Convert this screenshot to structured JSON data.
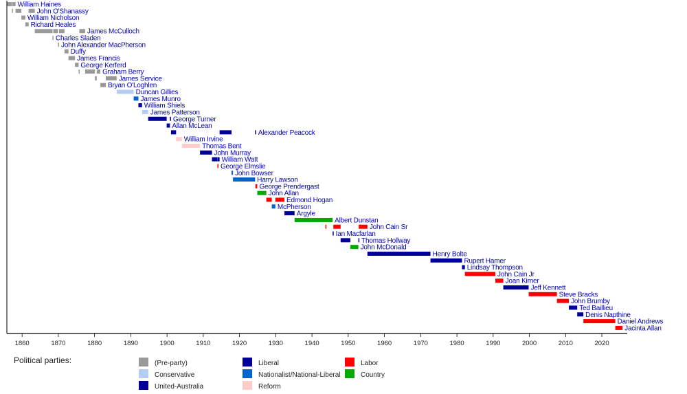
{
  "chart_data": {
    "type": "timeline",
    "title": "",
    "xlim": [
      1855.8,
      2027
    ],
    "xticks": [
      1860,
      1870,
      1880,
      1890,
      1900,
      1910,
      1920,
      1930,
      1940,
      1950,
      1960,
      1970,
      1980,
      1990,
      2000,
      2010,
      2020
    ],
    "legend_title": "Political parties:",
    "legend_placement": "bottom-left",
    "parties": [
      {
        "key": "pre",
        "name": "(Pre-party)",
        "color": "#999999"
      },
      {
        "key": "con",
        "name": "Conservative",
        "color": "#b4cdf2"
      },
      {
        "key": "uap",
        "name": "United-Australia",
        "color": "#000099"
      },
      {
        "key": "lib",
        "name": "Liberal",
        "color": "#000099"
      },
      {
        "key": "nat",
        "name": "Nationalist/National-Liberal",
        "color": "#0066cc"
      },
      {
        "key": "ref",
        "name": "Reform",
        "color": "#ffcccc"
      },
      {
        "key": "lab",
        "name": "Labor",
        "color": "#ff0000"
      },
      {
        "key": "cty",
        "name": "Country",
        "color": "#00aa00"
      }
    ],
    "premiers": [
      {
        "name": "William Haines",
        "terms": [
          [
            1855.9,
            1857.2,
            "pre"
          ],
          [
            1857.3,
            1858.2,
            "pre"
          ]
        ]
      },
      {
        "name": "John O'Shanassy",
        "terms": [
          [
            1857.2,
            1857.3,
            "pre"
          ],
          [
            1858.2,
            1859.8,
            "pre"
          ],
          [
            1861.8,
            1863.5,
            "pre"
          ]
        ]
      },
      {
        "name": "William Nicholson",
        "terms": [
          [
            1859.8,
            1860.9,
            "pre"
          ]
        ]
      },
      {
        "name": "Richard Heales",
        "terms": [
          [
            1860.9,
            1861.8,
            "pre"
          ]
        ]
      },
      {
        "name": "James McCulloch",
        "terms": [
          [
            1863.5,
            1868.4,
            "pre"
          ],
          [
            1868.6,
            1869.9,
            "pre"
          ],
          [
            1870.2,
            1871.7,
            "pre"
          ],
          [
            1875.8,
            1877.4,
            "pre"
          ]
        ]
      },
      {
        "name": "Charles Sladen",
        "terms": [
          [
            1868.4,
            1868.6,
            "pre"
          ]
        ]
      },
      {
        "name": "John Alexander MacPherson",
        "terms": [
          [
            1869.9,
            1870.2,
            "pre"
          ]
        ]
      },
      {
        "name": "Duffy",
        "terms": [
          [
            1871.7,
            1872.8,
            "pre"
          ]
        ]
      },
      {
        "name": "James Francis",
        "terms": [
          [
            1872.8,
            1874.6,
            "pre"
          ]
        ]
      },
      {
        "name": "George Kerferd",
        "terms": [
          [
            1874.6,
            1875.6,
            "pre"
          ]
        ]
      },
      {
        "name": "Graham Berry",
        "terms": [
          [
            1875.6,
            1875.8,
            "pre"
          ],
          [
            1877.4,
            1880.1,
            "pre"
          ],
          [
            1880.6,
            1881.6,
            "pre"
          ]
        ]
      },
      {
        "name": "James Service",
        "terms": [
          [
            1880.1,
            1880.6,
            "pre"
          ],
          [
            1883.1,
            1886.1,
            "pre"
          ]
        ]
      },
      {
        "name": "Bryan O'Loghlen",
        "terms": [
          [
            1881.6,
            1883.1,
            "pre"
          ]
        ]
      },
      {
        "name": "Duncan Gillies",
        "terms": [
          [
            1886.1,
            1890.8,
            "con"
          ]
        ]
      },
      {
        "name": "James Munro",
        "terms": [
          [
            1890.8,
            1892.1,
            "nat"
          ]
        ]
      },
      {
        "name": "William Shiels",
        "terms": [
          [
            1892.1,
            1893.1,
            "lib"
          ]
        ]
      },
      {
        "name": "James Patterson",
        "terms": [
          [
            1893.1,
            1894.8,
            "con"
          ]
        ]
      },
      {
        "name": "George Turner",
        "terms": [
          [
            1894.8,
            1899.9,
            "lib"
          ],
          [
            1900.8,
            1901.1,
            "lib"
          ]
        ]
      },
      {
        "name": "Allan McLean",
        "terms": [
          [
            1899.9,
            1900.8,
            "lib"
          ]
        ]
      },
      {
        "name": "Alexander Peacock",
        "terms": [
          [
            1901.1,
            1902.5,
            "lib"
          ],
          [
            1914.5,
            1917.8,
            "lib"
          ],
          [
            1924.3,
            1924.4,
            "lib"
          ]
        ]
      },
      {
        "name": "William Irvine",
        "terms": [
          [
            1902.5,
            1904.1,
            "ref"
          ]
        ]
      },
      {
        "name": "Thomas Bent",
        "terms": [
          [
            1904.1,
            1909.1,
            "ref"
          ]
        ]
      },
      {
        "name": "John Murray",
        "terms": [
          [
            1909.1,
            1912.4,
            "lib"
          ]
        ]
      },
      {
        "name": "William Watt",
        "terms": [
          [
            1912.4,
            1913.9,
            "lib"
          ],
          [
            1913.95,
            1914.5,
            "lib"
          ]
        ]
      },
      {
        "name": "George Elmslie",
        "terms": [
          [
            1913.9,
            1913.95,
            "lab"
          ]
        ]
      },
      {
        "name": "John Bowser",
        "terms": [
          [
            1917.8,
            1918.2,
            "nat"
          ]
        ]
      },
      {
        "name": "Harry Lawson",
        "terms": [
          [
            1918.2,
            1924.3,
            "nat"
          ]
        ]
      },
      {
        "name": "George Prendergast",
        "terms": [
          [
            1924.4,
            1924.9,
            "lab"
          ]
        ]
      },
      {
        "name": "John Allan",
        "terms": [
          [
            1924.9,
            1927.4,
            "cty"
          ]
        ]
      },
      {
        "name": "Edmond Hogan",
        "terms": [
          [
            1927.4,
            1928.9,
            "lab"
          ],
          [
            1929.9,
            1932.4,
            "lab"
          ]
        ]
      },
      {
        "name": "McPherson",
        "terms": [
          [
            1928.9,
            1929.9,
            "nat"
          ]
        ]
      },
      {
        "name": "Argyle",
        "terms": [
          [
            1932.4,
            1935.2,
            "uap"
          ]
        ]
      },
      {
        "name": "Albert Dunstan",
        "terms": [
          [
            1935.2,
            1945.7,
            "cty"
          ]
        ]
      },
      {
        "name": "John Cain Sr",
        "terms": [
          [
            1943.7,
            1943.75,
            "lab"
          ],
          [
            1945.9,
            1947.9,
            "lab"
          ],
          [
            1952.9,
            1955.3,
            "lab"
          ]
        ]
      },
      {
        "name": "Ian Macfarlan",
        "terms": [
          [
            1945.7,
            1945.9,
            "lib"
          ]
        ]
      },
      {
        "name": "Thomas Hollway",
        "terms": [
          [
            1947.9,
            1950.6,
            "lib"
          ],
          [
            1952.8,
            1952.82,
            "lib"
          ]
        ]
      },
      {
        "name": "John McDonald",
        "terms": [
          [
            1950.6,
            1952.8,
            "cty"
          ]
        ]
      },
      {
        "name": "Henry Bolte",
        "terms": [
          [
            1955.3,
            1972.7,
            "lib"
          ]
        ]
      },
      {
        "name": "Rupert Hamer",
        "terms": [
          [
            1972.7,
            1981.4,
            "lib"
          ]
        ]
      },
      {
        "name": "Lindsay Thompson",
        "terms": [
          [
            1981.4,
            1982.2,
            "lib"
          ]
        ]
      },
      {
        "name": "John Cain Jr",
        "terms": [
          [
            1982.2,
            1990.6,
            "lab"
          ]
        ]
      },
      {
        "name": "Joan Kirner",
        "terms": [
          [
            1990.6,
            1992.8,
            "lab"
          ]
        ]
      },
      {
        "name": "Jeff Kennett",
        "terms": [
          [
            1992.8,
            1999.8,
            "lib"
          ]
        ]
      },
      {
        "name": "Steve Bracks",
        "terms": [
          [
            1999.8,
            2007.6,
            "lab"
          ]
        ]
      },
      {
        "name": "John Brumby",
        "terms": [
          [
            2007.6,
            2010.9,
            "lab"
          ]
        ]
      },
      {
        "name": "Ted Baillieu",
        "terms": [
          [
            2010.9,
            2013.2,
            "lib"
          ]
        ]
      },
      {
        "name": "Denis Napthine",
        "terms": [
          [
            2013.2,
            2014.9,
            "lib"
          ]
        ]
      },
      {
        "name": "Daniel Andrews",
        "terms": [
          [
            2014.9,
            2023.7,
            "lab"
          ]
        ]
      },
      {
        "name": "Jacinta Allan",
        "terms": [
          [
            2023.7,
            2025.7,
            "lab"
          ]
        ]
      }
    ]
  }
}
